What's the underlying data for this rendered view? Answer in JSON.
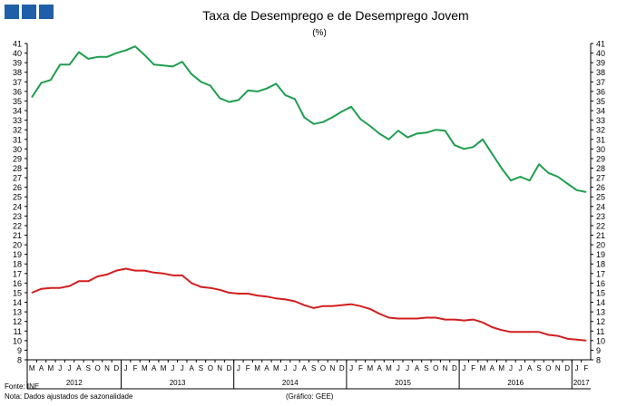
{
  "header": {
    "title": "Taxa de Desemprego e de Desemprego Jovem",
    "subtitle": "(%)"
  },
  "footer": {
    "source": "Fonte: INE",
    "note": "Nota: Dados ajustados de sazonalidade",
    "credit": "(Gráfico: GEE)"
  },
  "colors": {
    "youth": "#1e9e4e",
    "total": "#d21f1f",
    "logo": "#1f5fa8"
  },
  "chart_data": {
    "type": "line",
    "title": "Taxa de Desemprego e de Desemprego Jovem",
    "subtitle": "(%)",
    "ylim": [
      8,
      41
    ],
    "y_ticks": [
      8,
      9,
      10,
      11,
      12,
      13,
      14,
      15,
      16,
      17,
      18,
      19,
      20,
      21,
      22,
      23,
      24,
      25,
      26,
      27,
      28,
      29,
      30,
      31,
      32,
      33,
      34,
      35,
      36,
      37,
      38,
      39,
      40,
      41
    ],
    "dual_y_axis_mirror": true,
    "grid": false,
    "x_month_labels": [
      "M",
      "A",
      "M",
      "J",
      "J",
      "A",
      "S",
      "O",
      "N",
      "D",
      "J",
      "F",
      "M",
      "A",
      "M",
      "J",
      "J",
      "A",
      "S",
      "O",
      "N",
      "D",
      "J",
      "F",
      "M",
      "A",
      "M",
      "J",
      "J",
      "A",
      "S",
      "O",
      "N",
      "D",
      "J",
      "F",
      "M",
      "A",
      "M",
      "J",
      "J",
      "A",
      "S",
      "O",
      "N",
      "D",
      "J",
      "F",
      "M",
      "A",
      "M",
      "J",
      "J",
      "A",
      "S",
      "O",
      "N",
      "D",
      "J",
      "F"
    ],
    "x_year_labels": [
      {
        "label": "2012",
        "from": 0,
        "to": 9
      },
      {
        "label": "2013",
        "from": 10,
        "to": 21
      },
      {
        "label": "2014",
        "from": 22,
        "to": 33
      },
      {
        "label": "2015",
        "from": 34,
        "to": 45
      },
      {
        "label": "2016",
        "from": 46,
        "to": 57
      },
      {
        "label": "2017",
        "from": 58,
        "to": 59
      }
    ],
    "series": [
      {
        "color": "#1e9e4e",
        "values": [
          35.4,
          36.9,
          37.2,
          38.8,
          38.8,
          40.1,
          39.4,
          39.6,
          39.6,
          40.0,
          40.3,
          40.7,
          39.8,
          38.8,
          38.7,
          38.6,
          39.1,
          37.8,
          37.0,
          36.6,
          35.3,
          34.9,
          35.1,
          36.1,
          36.0,
          36.3,
          36.8,
          35.6,
          35.2,
          33.3,
          32.6,
          32.8,
          33.3,
          33.9,
          34.4,
          33.1,
          32.4,
          31.6,
          31.0,
          31.9,
          31.2,
          31.6,
          31.7,
          32.0,
          31.9,
          30.4,
          30.0,
          30.2,
          31.0,
          29.5,
          28.0,
          26.7,
          27.1,
          26.7,
          28.4,
          27.5,
          27.1,
          26.4,
          25.7,
          25.5
        ]
      },
      {
        "color": "#d21f1f",
        "values": [
          15.0,
          15.4,
          15.5,
          15.5,
          15.7,
          16.2,
          16.2,
          16.7,
          16.9,
          17.3,
          17.5,
          17.3,
          17.3,
          17.1,
          17.0,
          16.8,
          16.8,
          16.0,
          15.6,
          15.5,
          15.3,
          15.0,
          14.9,
          14.9,
          14.7,
          14.6,
          14.4,
          14.3,
          14.1,
          13.7,
          13.4,
          13.6,
          13.6,
          13.7,
          13.8,
          13.6,
          13.3,
          12.8,
          12.4,
          12.3,
          12.3,
          12.3,
          12.4,
          12.4,
          12.2,
          12.2,
          12.1,
          12.2,
          11.9,
          11.4,
          11.1,
          10.9,
          10.9,
          10.9,
          10.9,
          10.6,
          10.5,
          10.2,
          10.1,
          10.0
        ]
      }
    ]
  }
}
